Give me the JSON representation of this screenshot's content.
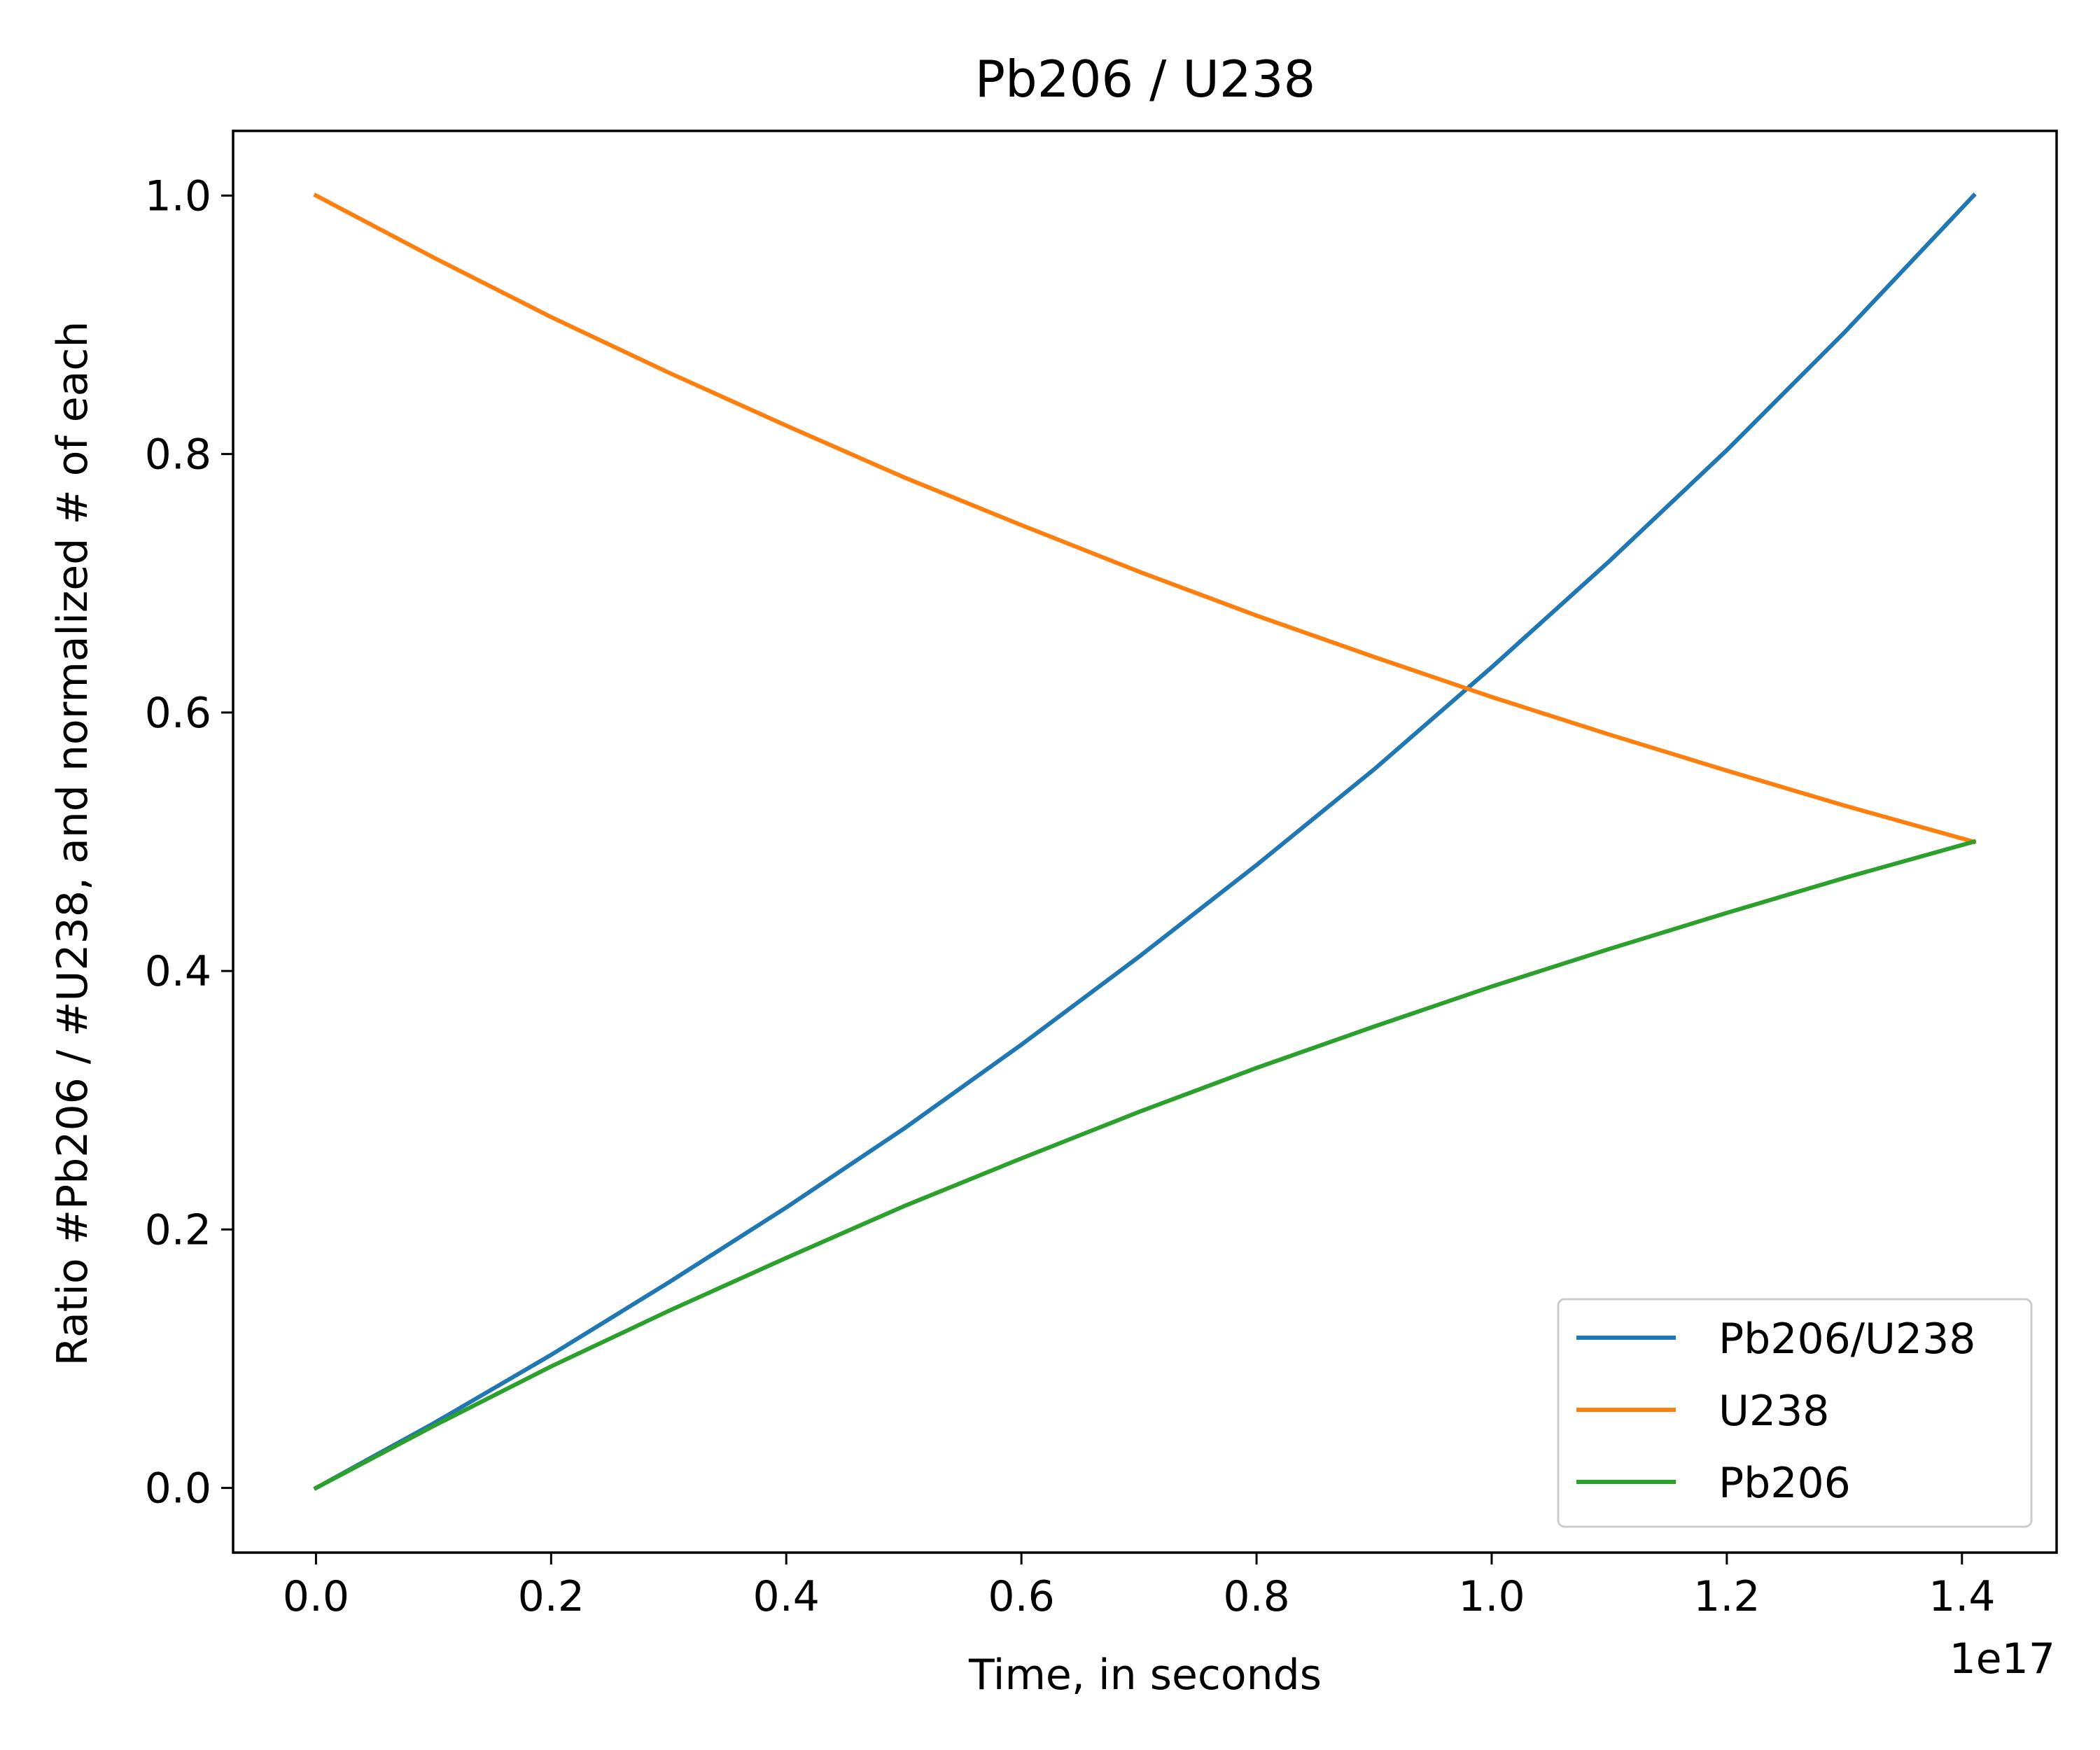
{
  "chart_data": {
    "type": "line",
    "title": "Pb206 / U238",
    "xlabel": "Time, in seconds",
    "ylabel": "Ratio #Pb206 / #U238, and normalized # of each",
    "x_offset_text": "1e17",
    "xlim": [
      -0.0705,
      1.4805
    ],
    "ylim": [
      -0.05,
      1.05
    ],
    "x_unit_multiplier": 1e+17,
    "xticks": [
      0.0,
      0.2,
      0.4,
      0.6,
      0.8,
      1.0,
      1.2,
      1.4
    ],
    "xtick_labels": [
      "0.0",
      "0.2",
      "0.4",
      "0.6",
      "0.8",
      "1.0",
      "1.2",
      "1.4"
    ],
    "yticks": [
      0.0,
      0.2,
      0.4,
      0.6,
      0.8,
      1.0
    ],
    "ytick_labels": [
      "0.0",
      "0.2",
      "0.4",
      "0.6",
      "0.8",
      "1.0"
    ],
    "grid": false,
    "legend_position": "lower-right",
    "x": [
      0.0,
      0.1,
      0.2,
      0.3,
      0.4,
      0.5,
      0.6,
      0.7,
      0.8,
      0.9,
      1.0,
      1.1,
      1.2,
      1.3,
      1.41
    ],
    "series": [
      {
        "name": "Pb206/U238",
        "color": "#1f77b4",
        "values": [
          0.0,
          0.05,
          0.103,
          0.159,
          0.217,
          0.278,
          0.343,
          0.411,
          0.482,
          0.556,
          0.635,
          0.717,
          0.803,
          0.894,
          1.0
        ]
      },
      {
        "name": "U238",
        "color": "#ff7f0e",
        "values": [
          1.0,
          0.952,
          0.906,
          0.863,
          0.822,
          0.782,
          0.745,
          0.709,
          0.675,
          0.643,
          0.612,
          0.583,
          0.555,
          0.528,
          0.5
        ]
      },
      {
        "name": "Pb206",
        "color": "#2ca02c",
        "values": [
          0.0,
          0.048,
          0.094,
          0.137,
          0.178,
          0.218,
          0.255,
          0.291,
          0.325,
          0.357,
          0.388,
          0.417,
          0.445,
          0.472,
          0.5
        ]
      }
    ]
  }
}
